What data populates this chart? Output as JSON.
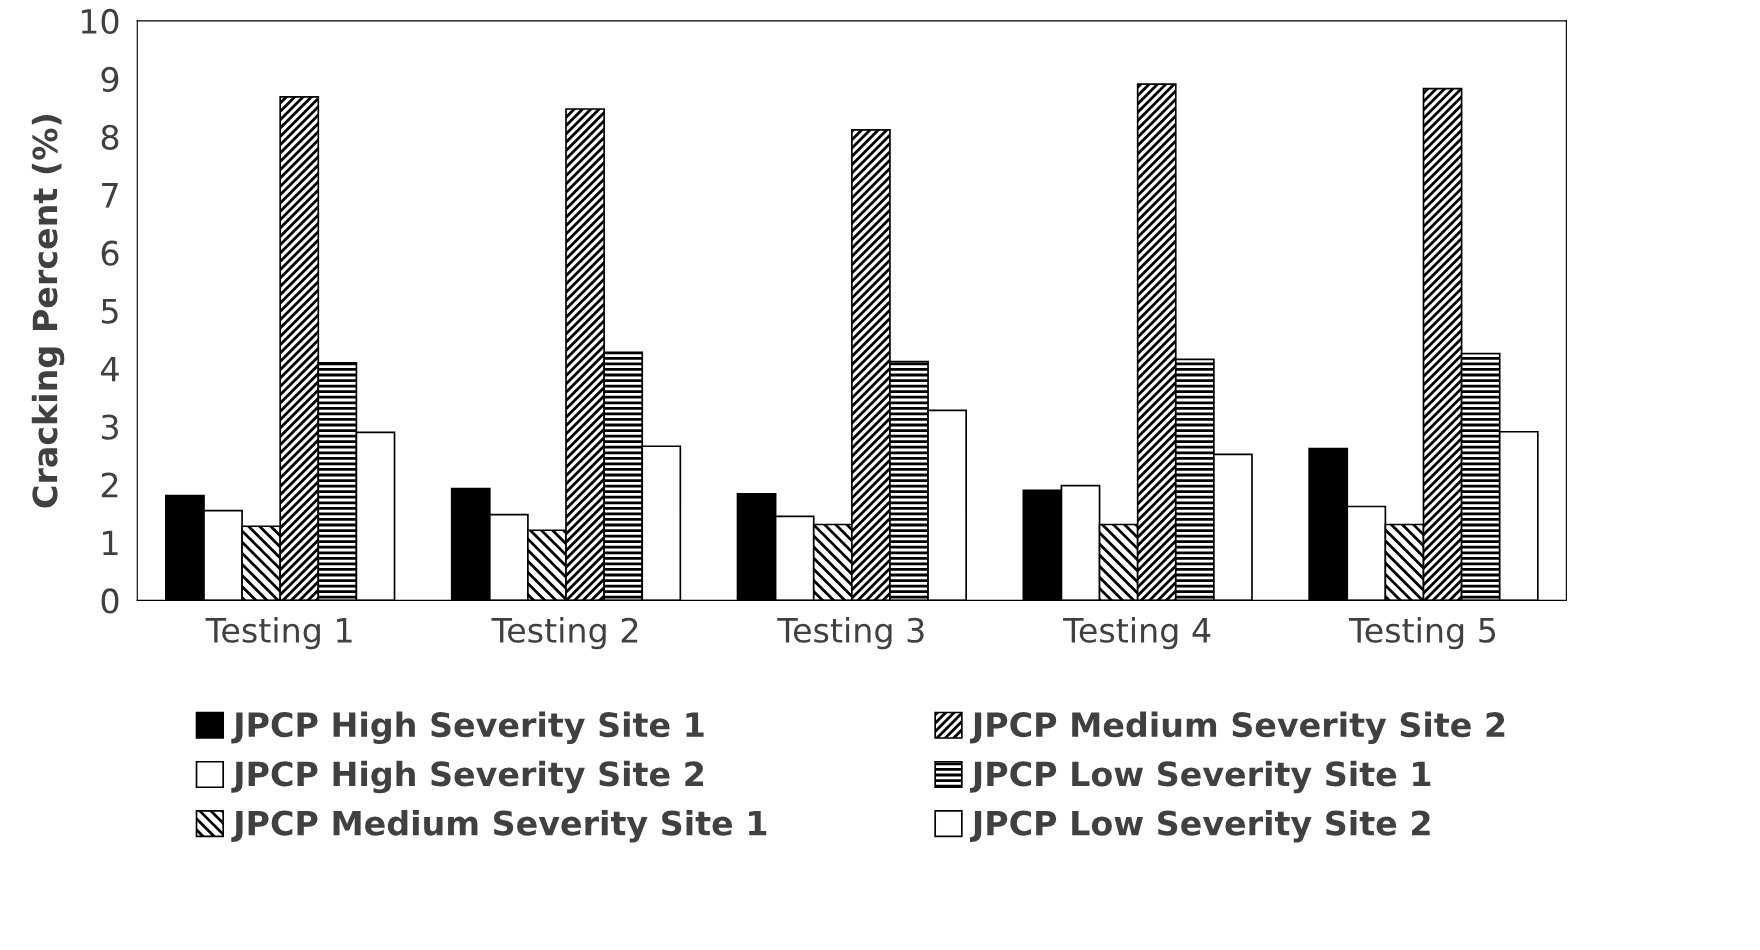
{
  "chart_data": {
    "type": "bar",
    "ylabel": "Cracking Percent (%)",
    "categories": [
      "Testing 1",
      "Testing 2",
      "Testing 3",
      "Testing 4",
      "Testing 5"
    ],
    "series": [
      {
        "name": "JPCP High Severity Site 1",
        "color": "#000000",
        "values": [
          1.81,
          1.93,
          1.84,
          1.9,
          2.62
        ]
      },
      {
        "name": "JPCP High Severity Site 2",
        "color": "#ffffff",
        "values": [
          1.55,
          1.48,
          1.45,
          1.98,
          1.62
        ]
      },
      {
        "name": "JPCP Medium Severity Site 1",
        "color": "#000000",
        "values": [
          1.28,
          1.21,
          1.31,
          1.31,
          1.31
        ]
      },
      {
        "name": "JPCP Medium Severity Site 2",
        "color": "#000000",
        "values": [
          8.69,
          8.48,
          8.12,
          8.91,
          8.83
        ]
      },
      {
        "name": "JPCP Low Severity Site 1",
        "color": "#000000",
        "values": [
          4.1,
          4.28,
          4.12,
          4.16,
          4.26
        ]
      },
      {
        "name": "JPCP Low Severity Site 2",
        "color": "#000000",
        "values": [
          2.9,
          2.66,
          3.28,
          2.52,
          2.91
        ]
      }
    ],
    "ylim": [
      0,
      10
    ],
    "yticks": [
      0,
      1,
      2,
      3,
      4,
      5,
      6,
      7,
      8,
      9,
      10
    ],
    "grid": false,
    "legend": "bottom"
  }
}
